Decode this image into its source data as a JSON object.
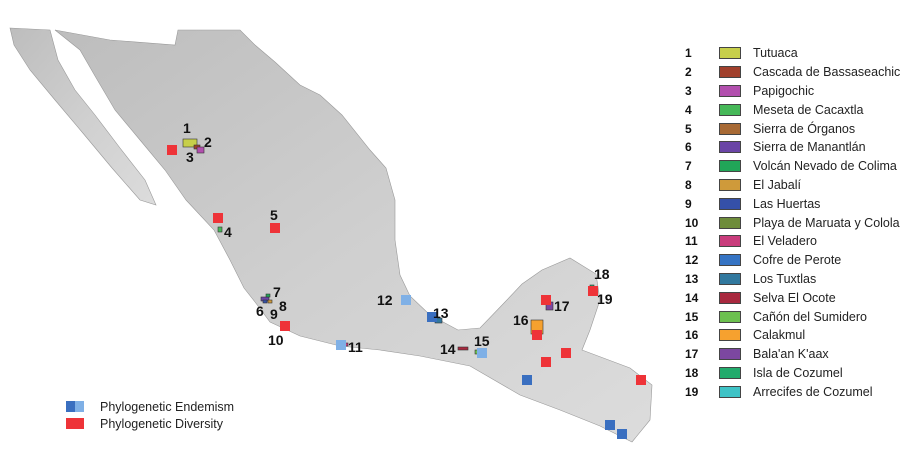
{
  "areas": [
    {
      "num": "1",
      "name": "Tutuaca",
      "color": "#c7cf4a"
    },
    {
      "num": "2",
      "name": "Cascada de Bassaseachic",
      "color": "#a1402c"
    },
    {
      "num": "3",
      "name": "Papigochic",
      "color": "#b24fae"
    },
    {
      "num": "4",
      "name": "Meseta de Cacaxtla",
      "color": "#46b858"
    },
    {
      "num": "5",
      "name": "Sierra de Órganos",
      "color": "#a86a35"
    },
    {
      "num": "6",
      "name": "Sierra de Manantlán",
      "color": "#6a45a6"
    },
    {
      "num": "7",
      "name": "Volcán Nevado de Colima",
      "color": "#21a558"
    },
    {
      "num": "8",
      "name": "El Jabalí",
      "color": "#cf9a3a"
    },
    {
      "num": "9",
      "name": "Las Huertas",
      "color": "#3550a8"
    },
    {
      "num": "10",
      "name": "Playa de Maruata y Colola",
      "color": "#6e8c3a"
    },
    {
      "num": "11",
      "name": "El Veladero",
      "color": "#c93c7c"
    },
    {
      "num": "12",
      "name": "Cofre de Perote",
      "color": "#3574c4"
    },
    {
      "num": "13",
      "name": "Los Tuxtlas",
      "color": "#31789e"
    },
    {
      "num": "14",
      "name": "Selva El Ocote",
      "color": "#a8283e"
    },
    {
      "num": "15",
      "name": "Cañón del Sumidero",
      "color": "#6cc04f"
    },
    {
      "num": "16",
      "name": "Calakmul",
      "color": "#f6a12f"
    },
    {
      "num": "17",
      "name": "Bala'an K'aax",
      "color": "#7c47a0"
    },
    {
      "num": "18",
      "name": "Isla de Cozumel",
      "color": "#22ab6c"
    },
    {
      "num": "19",
      "name": "Arrecifes de Cozumel",
      "color": "#3fc3c6"
    }
  ],
  "metrics": [
    {
      "name": "Phylogenetic Endemism",
      "colors": [
        "#3a6fc0",
        "#7fb0e6"
      ]
    },
    {
      "name": "Phylogenetic Diversity",
      "colors": [
        "#ee3338"
      ]
    }
  ],
  "land_color": "#c9c9c9"
}
